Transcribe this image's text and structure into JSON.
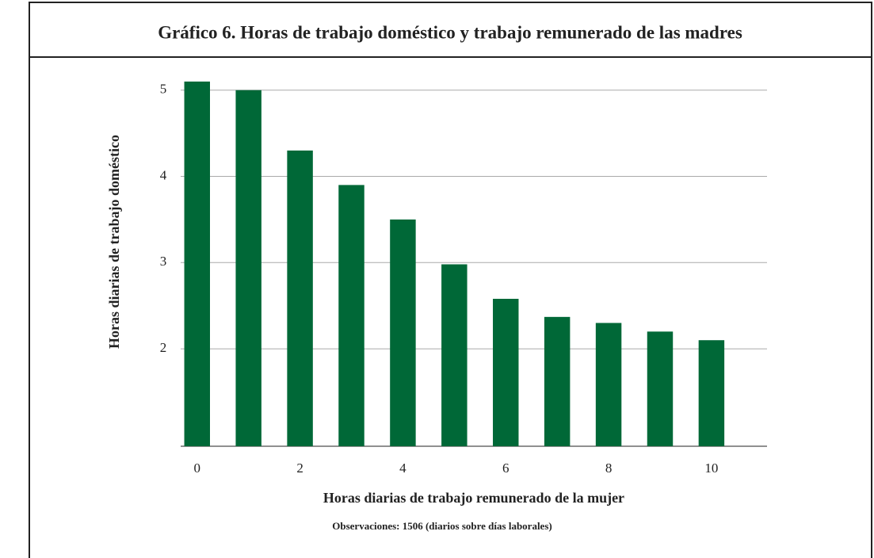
{
  "chart_data": {
    "type": "bar",
    "title": "Gráfico 6. Horas de trabajo doméstico y trabajo remunerado de las madres",
    "x_label": "Horas diarias de trabajo remunerado de la mujer",
    "y_label": "Horas diarias de trabajo doméstico",
    "note": "Observaciones: 1506 (diarios sobre días laborales)",
    "x": [
      0,
      1,
      2,
      3,
      4,
      5,
      6,
      7,
      8,
      9,
      10
    ],
    "values": [
      5.1,
      5.0,
      4.3,
      3.9,
      3.5,
      2.98,
      2.58,
      2.37,
      2.3,
      2.2,
      2.1
    ],
    "color": "#006837",
    "xlim": [
      -0.32,
      11.08
    ],
    "xticks": [
      0,
      2,
      4,
      6,
      8,
      10
    ],
    "ylim": [
      0.87,
      5.2
    ],
    "yticks": [
      2,
      3,
      4,
      5
    ],
    "grid": true
  }
}
